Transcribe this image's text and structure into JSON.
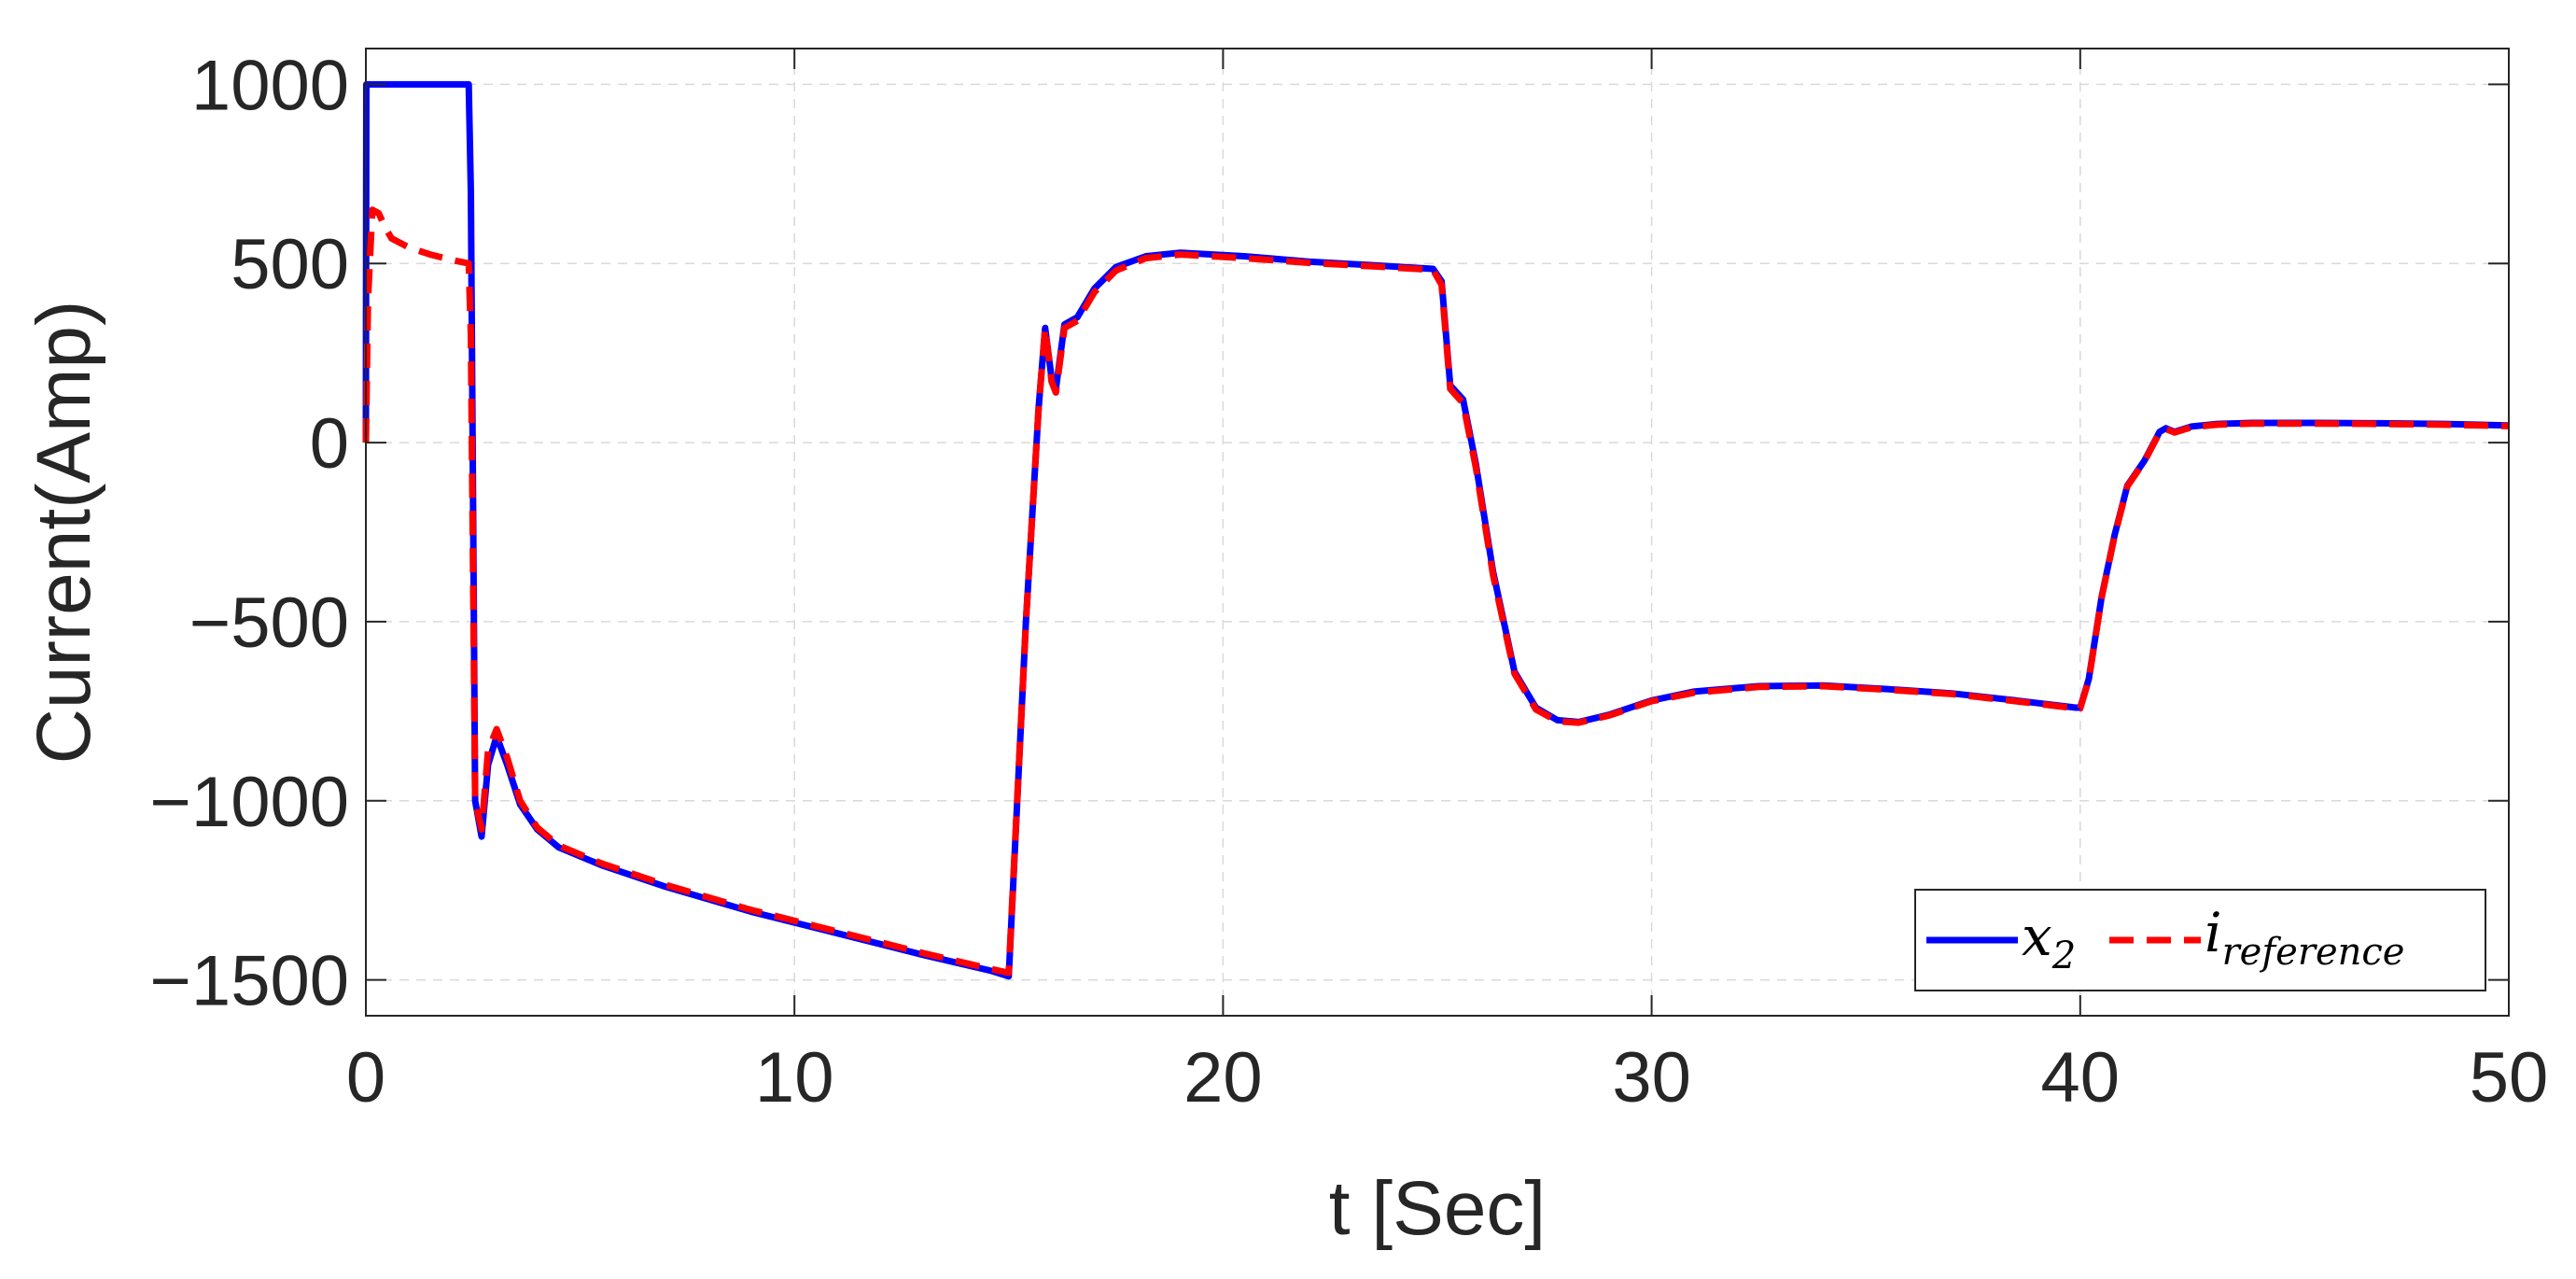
{
  "chart_data": {
    "type": "line",
    "title": "",
    "xlabel": "t [Sec]",
    "ylabel": "Current(Amp)",
    "xlim": [
      0,
      50
    ],
    "ylim": [
      -1600,
      1100
    ],
    "xticks": [
      0,
      10,
      20,
      30,
      40,
      50
    ],
    "yticks": [
      -1500,
      -1000,
      -500,
      0,
      500,
      1000
    ],
    "xtick_labels": [
      "0",
      "10",
      "20",
      "30",
      "40",
      "50"
    ],
    "ytick_labels": [
      "−1500",
      "−1000",
      "−500",
      "0",
      "500",
      "1000"
    ],
    "grid": true,
    "legend_position": "bottom-right",
    "legend": {
      "entry1": {
        "base": "x",
        "sub": "2"
      },
      "entry2": {
        "base": "i",
        "sub": "reference"
      }
    },
    "colors": {
      "x2": "#0000ff",
      "i_reference": "#ff0000"
    },
    "series": [
      {
        "key": "x2",
        "style": "solid",
        "x": [
          0,
          0.01,
          0.05,
          2.4,
          2.45,
          2.55,
          2.7,
          2.85,
          3.05,
          3.3,
          3.6,
          4.0,
          4.5,
          5.5,
          7,
          9,
          11,
          13,
          14.6,
          15.0,
          15.4,
          15.7,
          15.85,
          16.0,
          16.1,
          16.3,
          16.6,
          17.0,
          17.5,
          18.2,
          19.0,
          20.5,
          22,
          23.5,
          24.9,
          25.1,
          25.3,
          25.6,
          25.9,
          26.3,
          26.8,
          27.3,
          27.8,
          28.3,
          29,
          30,
          31,
          32.5,
          34,
          35.5,
          37,
          38.5,
          39.9,
          40.0,
          40.2,
          40.5,
          40.8,
          41.1,
          41.5,
          41.85,
          42.0,
          42.2,
          42.6,
          43.2,
          44,
          45.5,
          47,
          48.5,
          50
        ],
        "y": [
          0,
          1000,
          1000,
          1000,
          700,
          -1000,
          -1100,
          -900,
          -820,
          -900,
          -1010,
          -1080,
          -1130,
          -1180,
          -1240,
          -1310,
          -1370,
          -1430,
          -1475,
          -1490,
          -500,
          100,
          320,
          180,
          150,
          330,
          350,
          430,
          490,
          520,
          530,
          520,
          505,
          495,
          485,
          450,
          160,
          120,
          -60,
          -360,
          -640,
          -740,
          -775,
          -780,
          -760,
          -720,
          -695,
          -680,
          -678,
          -688,
          -700,
          -720,
          -740,
          -740,
          -660,
          -430,
          -260,
          -120,
          -50,
          30,
          40,
          30,
          45,
          52,
          55,
          55,
          54,
          52,
          48
        ]
      },
      {
        "key": "i_reference",
        "style": "dashed",
        "x": [
          0,
          0.05,
          0.15,
          0.3,
          0.45,
          0.6,
          1.0,
          1.5,
          2.0,
          2.4,
          2.45,
          2.55,
          2.7,
          2.85,
          3.05,
          3.3,
          3.6,
          4.0,
          4.5,
          5.5,
          7,
          9,
          11,
          13,
          14.6,
          15.0,
          15.4,
          15.7,
          15.85,
          16.0,
          16.1,
          16.3,
          16.6,
          17.0,
          17.5,
          18.2,
          19.0,
          20.5,
          22,
          23.5,
          24.9,
          25.1,
          25.3,
          25.6,
          25.9,
          26.3,
          26.8,
          27.3,
          27.8,
          28.3,
          29,
          30,
          31,
          32.5,
          34,
          35.5,
          37,
          38.5,
          39.9,
          40.0,
          40.2,
          40.5,
          40.8,
          41.1,
          41.5,
          41.85,
          42.0,
          42.2,
          42.6,
          43.2,
          44,
          45.5,
          47,
          48.5,
          50
        ],
        "y": [
          0,
          400,
          650,
          640,
          600,
          570,
          545,
          525,
          510,
          500,
          300,
          -1000,
          -1080,
          -860,
          -800,
          -880,
          -1000,
          -1075,
          -1125,
          -1175,
          -1235,
          -1305,
          -1365,
          -1425,
          -1470,
          -1480,
          -500,
          100,
          320,
          170,
          140,
          320,
          340,
          420,
          480,
          515,
          525,
          515,
          502,
          492,
          482,
          440,
          150,
          110,
          -70,
          -370,
          -645,
          -745,
          -778,
          -782,
          -762,
          -722,
          -698,
          -682,
          -680,
          -690,
          -702,
          -722,
          -742,
          -742,
          -662,
          -432,
          -262,
          -122,
          -52,
          28,
          38,
          28,
          43,
          50,
          53,
          53,
          52,
          50,
          46
        ]
      }
    ]
  }
}
